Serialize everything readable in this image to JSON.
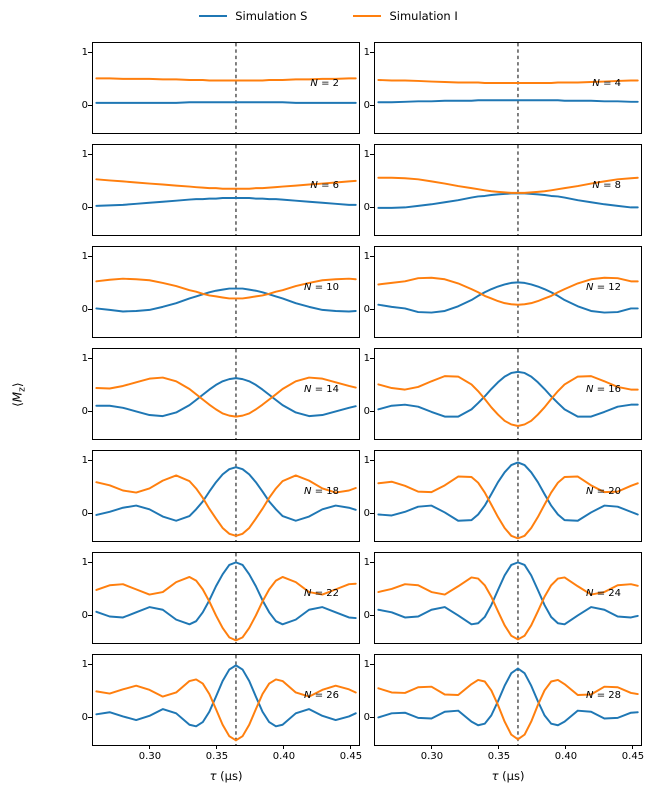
{
  "chart_data": {
    "type": "line",
    "title": "",
    "xlabel": "τ (μs)",
    "ylabel": "⟨M_z⟩",
    "xlabel_parts": {
      "tau": "τ",
      "rest": " (μs)"
    },
    "ylabel_parts": {
      "pre": "⟨",
      "main": "M",
      "sub": "z",
      "post": "⟩"
    },
    "xlim": [
      0.2575,
      0.4575
    ],
    "ylim": [
      -0.55,
      1.18
    ],
    "xticks": [
      0.3,
      0.35,
      0.4,
      0.45
    ],
    "xtick_labels": [
      "0.30",
      "0.35",
      "0.40",
      "0.45"
    ],
    "yticks": [
      0,
      1
    ],
    "ytick_labels": [
      "0",
      "1"
    ],
    "vline_x": 0.365,
    "vline_style": "dashed",
    "grid_on": false,
    "legend_position": "top-center",
    "colors": {
      "simulation_s": "#1f77b4",
      "simulation_i": "#ff7f0e",
      "vline": "#000000"
    },
    "legend": [
      {
        "label": "Simulation S",
        "series": "S",
        "color": "#1f77b4"
      },
      {
        "label": "Simulation I",
        "series": "I",
        "color": "#ff7f0e"
      }
    ],
    "x": [
      0.26,
      0.27,
      0.28,
      0.29,
      0.3,
      0.31,
      0.32,
      0.33,
      0.335,
      0.34,
      0.345,
      0.35,
      0.355,
      0.36,
      0.365,
      0.37,
      0.375,
      0.38,
      0.385,
      0.39,
      0.395,
      0.4,
      0.41,
      0.42,
      0.43,
      0.44,
      0.45,
      0.455
    ],
    "panels": [
      {
        "N": 2,
        "label": "N = 2",
        "S": [
          0.03,
          0.03,
          0.03,
          0.03,
          0.03,
          0.03,
          0.03,
          0.04,
          0.04,
          0.04,
          0.04,
          0.04,
          0.04,
          0.04,
          0.04,
          0.04,
          0.04,
          0.04,
          0.04,
          0.04,
          0.04,
          0.04,
          0.03,
          0.03,
          0.03,
          0.03,
          0.03,
          0.03
        ],
        "I": [
          0.5,
          0.5,
          0.49,
          0.49,
          0.49,
          0.48,
          0.48,
          0.47,
          0.47,
          0.47,
          0.46,
          0.46,
          0.46,
          0.46,
          0.46,
          0.46,
          0.46,
          0.46,
          0.46,
          0.47,
          0.47,
          0.47,
          0.48,
          0.48,
          0.49,
          0.49,
          0.5,
          0.5
        ]
      },
      {
        "N": 4,
        "label": "N = 4",
        "S": [
          0.04,
          0.04,
          0.05,
          0.06,
          0.06,
          0.07,
          0.07,
          0.07,
          0.08,
          0.08,
          0.08,
          0.08,
          0.08,
          0.08,
          0.08,
          0.08,
          0.08,
          0.08,
          0.08,
          0.08,
          0.08,
          0.07,
          0.07,
          0.07,
          0.06,
          0.06,
          0.05,
          0.05
        ],
        "I": [
          0.47,
          0.46,
          0.46,
          0.45,
          0.44,
          0.43,
          0.42,
          0.42,
          0.42,
          0.41,
          0.41,
          0.41,
          0.41,
          0.41,
          0.41,
          0.41,
          0.41,
          0.41,
          0.41,
          0.41,
          0.42,
          0.42,
          0.42,
          0.43,
          0.44,
          0.45,
          0.46,
          0.46
        ]
      },
      {
        "N": 6,
        "label": "N = 6",
        "S": [
          0.01,
          0.02,
          0.03,
          0.05,
          0.07,
          0.09,
          0.11,
          0.13,
          0.14,
          0.14,
          0.15,
          0.15,
          0.16,
          0.16,
          0.16,
          0.16,
          0.16,
          0.15,
          0.15,
          0.14,
          0.14,
          0.13,
          0.11,
          0.09,
          0.07,
          0.05,
          0.03,
          0.03
        ],
        "I": [
          0.52,
          0.5,
          0.48,
          0.46,
          0.44,
          0.42,
          0.4,
          0.38,
          0.37,
          0.36,
          0.35,
          0.35,
          0.34,
          0.34,
          0.34,
          0.34,
          0.34,
          0.35,
          0.35,
          0.36,
          0.37,
          0.38,
          0.4,
          0.42,
          0.44,
          0.46,
          0.48,
          0.49
        ]
      },
      {
        "N": 8,
        "label": "N = 8",
        "S": [
          -0.03,
          -0.03,
          -0.02,
          0.01,
          0.04,
          0.08,
          0.12,
          0.17,
          0.19,
          0.2,
          0.22,
          0.23,
          0.24,
          0.25,
          0.25,
          0.25,
          0.24,
          0.23,
          0.22,
          0.2,
          0.19,
          0.17,
          0.12,
          0.08,
          0.04,
          0.01,
          -0.02,
          -0.02
        ],
        "I": [
          0.55,
          0.55,
          0.54,
          0.52,
          0.48,
          0.44,
          0.39,
          0.35,
          0.33,
          0.31,
          0.29,
          0.28,
          0.27,
          0.26,
          0.26,
          0.26,
          0.27,
          0.28,
          0.29,
          0.31,
          0.33,
          0.35,
          0.39,
          0.44,
          0.48,
          0.52,
          0.54,
          0.55
        ]
      },
      {
        "N": 10,
        "label": "N = 10",
        "S": [
          0.0,
          -0.03,
          -0.06,
          -0.05,
          -0.03,
          0.03,
          0.1,
          0.19,
          0.23,
          0.27,
          0.31,
          0.34,
          0.36,
          0.38,
          0.38,
          0.38,
          0.36,
          0.34,
          0.31,
          0.27,
          0.23,
          0.19,
          0.1,
          0.03,
          -0.03,
          -0.05,
          -0.06,
          -0.05
        ],
        "I": [
          0.52,
          0.55,
          0.57,
          0.56,
          0.54,
          0.49,
          0.43,
          0.35,
          0.32,
          0.28,
          0.25,
          0.23,
          0.21,
          0.19,
          0.19,
          0.19,
          0.21,
          0.23,
          0.25,
          0.28,
          0.32,
          0.35,
          0.43,
          0.49,
          0.54,
          0.56,
          0.57,
          0.56
        ]
      },
      {
        "N": 12,
        "label": "N = 12",
        "S": [
          0.07,
          0.03,
          0.0,
          -0.07,
          -0.08,
          -0.05,
          0.04,
          0.16,
          0.24,
          0.31,
          0.37,
          0.42,
          0.46,
          0.49,
          0.5,
          0.49,
          0.46,
          0.42,
          0.37,
          0.31,
          0.24,
          0.16,
          0.04,
          -0.05,
          -0.08,
          -0.07,
          0.0,
          0.0
        ],
        "I": [
          0.46,
          0.49,
          0.52,
          0.58,
          0.59,
          0.56,
          0.48,
          0.37,
          0.31,
          0.24,
          0.19,
          0.14,
          0.1,
          0.08,
          0.07,
          0.08,
          0.1,
          0.14,
          0.19,
          0.24,
          0.31,
          0.37,
          0.48,
          0.56,
          0.59,
          0.58,
          0.52,
          0.52
        ]
      },
      {
        "N": 14,
        "label": "N = 14",
        "S": [
          0.09,
          0.09,
          0.05,
          -0.02,
          -0.09,
          -0.11,
          -0.04,
          0.1,
          0.2,
          0.3,
          0.4,
          0.49,
          0.56,
          0.6,
          0.62,
          0.6,
          0.56,
          0.49,
          0.4,
          0.3,
          0.2,
          0.1,
          -0.04,
          -0.11,
          -0.09,
          -0.02,
          0.05,
          0.08
        ],
        "I": [
          0.43,
          0.42,
          0.47,
          0.54,
          0.61,
          0.63,
          0.56,
          0.41,
          0.31,
          0.21,
          0.11,
          0.02,
          -0.06,
          -0.1,
          -0.12,
          -0.1,
          -0.06,
          0.02,
          0.11,
          0.21,
          0.31,
          0.41,
          0.56,
          0.63,
          0.61,
          0.54,
          0.47,
          0.44
        ]
      },
      {
        "N": 16,
        "label": "N = 16",
        "S": [
          0.02,
          0.09,
          0.11,
          0.07,
          -0.03,
          -0.12,
          -0.12,
          0.02,
          0.14,
          0.27,
          0.41,
          0.54,
          0.65,
          0.72,
          0.74,
          0.72,
          0.65,
          0.54,
          0.41,
          0.27,
          0.14,
          0.02,
          -0.12,
          -0.12,
          -0.03,
          0.07,
          0.11,
          0.11
        ],
        "I": [
          0.5,
          0.43,
          0.4,
          0.45,
          0.56,
          0.66,
          0.65,
          0.5,
          0.37,
          0.22,
          0.06,
          -0.08,
          -0.2,
          -0.27,
          -0.3,
          -0.27,
          -0.2,
          -0.08,
          0.06,
          0.22,
          0.37,
          0.5,
          0.65,
          0.66,
          0.56,
          0.45,
          0.4,
          0.4
        ]
      },
      {
        "N": 18,
        "label": "N = 18",
        "S": [
          -0.05,
          0.01,
          0.09,
          0.13,
          0.06,
          -0.08,
          -0.16,
          -0.07,
          0.06,
          0.21,
          0.4,
          0.58,
          0.73,
          0.83,
          0.87,
          0.83,
          0.73,
          0.58,
          0.4,
          0.21,
          0.06,
          -0.07,
          -0.16,
          -0.08,
          0.06,
          0.13,
          0.09,
          0.05
        ],
        "I": [
          0.58,
          0.52,
          0.42,
          0.38,
          0.46,
          0.61,
          0.71,
          0.6,
          0.46,
          0.28,
          0.07,
          -0.12,
          -0.3,
          -0.41,
          -0.45,
          -0.41,
          -0.3,
          -0.12,
          0.07,
          0.28,
          0.46,
          0.6,
          0.71,
          0.61,
          0.46,
          0.38,
          0.42,
          0.47
        ]
      },
      {
        "N": 20,
        "label": "N = 20",
        "S": [
          -0.04,
          -0.06,
          0.01,
          0.11,
          0.13,
          0.0,
          -0.16,
          -0.15,
          -0.04,
          0.13,
          0.35,
          0.58,
          0.77,
          0.91,
          0.96,
          0.91,
          0.77,
          0.58,
          0.35,
          0.13,
          -0.04,
          -0.15,
          -0.16,
          0.0,
          0.13,
          0.11,
          0.01,
          -0.04
        ],
        "I": [
          0.56,
          0.59,
          0.51,
          0.4,
          0.39,
          0.52,
          0.69,
          0.68,
          0.57,
          0.38,
          0.15,
          -0.09,
          -0.3,
          -0.45,
          -0.5,
          -0.45,
          -0.3,
          -0.09,
          0.15,
          0.38,
          0.57,
          0.68,
          0.69,
          0.52,
          0.39,
          0.4,
          0.51,
          0.56
        ]
      },
      {
        "N": 22,
        "label": "N = 22",
        "S": [
          0.05,
          -0.04,
          -0.06,
          0.04,
          0.14,
          0.09,
          -0.1,
          -0.19,
          -0.13,
          0.04,
          0.27,
          0.54,
          0.77,
          0.95,
          1.0,
          0.95,
          0.77,
          0.54,
          0.27,
          0.04,
          -0.13,
          -0.19,
          -0.1,
          0.09,
          0.14,
          0.04,
          -0.06,
          -0.07
        ],
        "I": [
          0.47,
          0.56,
          0.58,
          0.48,
          0.38,
          0.43,
          0.62,
          0.72,
          0.65,
          0.48,
          0.25,
          -0.02,
          -0.26,
          -0.44,
          -0.5,
          -0.44,
          -0.26,
          -0.02,
          0.25,
          0.48,
          0.65,
          0.72,
          0.62,
          0.43,
          0.38,
          0.48,
          0.58,
          0.59
        ]
      },
      {
        "N": 24,
        "label": "N = 24",
        "S": [
          0.09,
          0.04,
          -0.06,
          -0.04,
          0.09,
          0.14,
          -0.02,
          -0.19,
          -0.17,
          -0.05,
          0.18,
          0.47,
          0.75,
          0.95,
          1.0,
          0.95,
          0.75,
          0.47,
          0.18,
          -0.05,
          -0.17,
          -0.19,
          -0.02,
          0.14,
          0.09,
          -0.04,
          -0.06,
          -0.03
        ],
        "I": [
          0.43,
          0.49,
          0.58,
          0.56,
          0.43,
          0.38,
          0.54,
          0.71,
          0.69,
          0.56,
          0.34,
          0.06,
          -0.21,
          -0.41,
          -0.48,
          -0.41,
          -0.21,
          0.06,
          0.34,
          0.56,
          0.69,
          0.71,
          0.54,
          0.38,
          0.43,
          0.56,
          0.58,
          0.55
        ]
      },
      {
        "N": 26,
        "label": "N = 26",
        "S": [
          0.04,
          0.08,
          0.0,
          -0.07,
          0.01,
          0.14,
          0.06,
          -0.16,
          -0.19,
          -0.11,
          0.09,
          0.38,
          0.68,
          0.9,
          0.98,
          0.9,
          0.68,
          0.38,
          0.09,
          -0.11,
          -0.19,
          -0.16,
          0.06,
          0.14,
          0.01,
          -0.07,
          0.0,
          0.06
        ],
        "I": [
          0.48,
          0.44,
          0.52,
          0.59,
          0.51,
          0.38,
          0.46,
          0.68,
          0.71,
          0.63,
          0.43,
          0.14,
          -0.16,
          -0.38,
          -0.46,
          -0.38,
          -0.16,
          0.14,
          0.43,
          0.63,
          0.71,
          0.68,
          0.46,
          0.38,
          0.51,
          0.59,
          0.52,
          0.46
        ]
      },
      {
        "N": 28,
        "label": "N = 28",
        "S": [
          -0.02,
          0.06,
          0.07,
          -0.03,
          -0.04,
          0.09,
          0.11,
          -0.1,
          -0.17,
          -0.14,
          0.02,
          0.29,
          0.59,
          0.83,
          0.92,
          0.83,
          0.59,
          0.29,
          0.02,
          -0.14,
          -0.17,
          -0.1,
          0.11,
          0.09,
          -0.04,
          -0.03,
          0.07,
          0.08
        ],
        "I": [
          0.54,
          0.46,
          0.45,
          0.56,
          0.57,
          0.42,
          0.41,
          0.62,
          0.7,
          0.67,
          0.5,
          0.22,
          -0.1,
          -0.35,
          -0.44,
          -0.35,
          -0.1,
          0.22,
          0.5,
          0.67,
          0.7,
          0.62,
          0.41,
          0.42,
          0.57,
          0.56,
          0.45,
          0.43
        ]
      }
    ]
  }
}
